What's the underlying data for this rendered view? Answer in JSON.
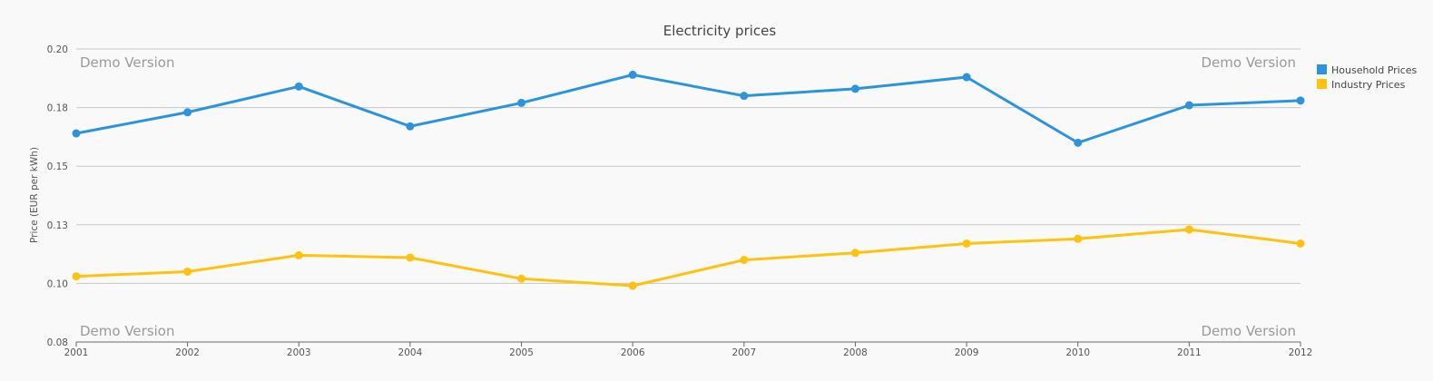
{
  "chart_data": {
    "type": "line",
    "title": "Electricity prices",
    "ylabel": "Price (EUR per kWh)",
    "xlabel": "",
    "x": [
      "2001",
      "2002",
      "2003",
      "2004",
      "2005",
      "2006",
      "2007",
      "2008",
      "2009",
      "2010",
      "2011",
      "2012"
    ],
    "ylim": [
      0.075,
      0.2
    ],
    "yticks": [
      0.2,
      0.175,
      0.15,
      0.125,
      0.1,
      0.075
    ],
    "ytick_labels": [
      "0.20",
      "0.18",
      "0.15",
      "0.13",
      "0.10",
      "0.08"
    ],
    "grid": true,
    "legend": "right-top",
    "series": [
      {
        "name": "Household Prices",
        "color": "#2b94dd",
        "values": [
          0.164,
          0.173,
          0.184,
          0.167,
          0.177,
          0.189,
          0.18,
          0.183,
          0.188,
          0.16,
          0.176,
          0.178
        ]
      },
      {
        "name": "Industry Prices",
        "color": "#ffc20e",
        "values": [
          0.103,
          0.105,
          0.112,
          0.111,
          0.102,
          0.099,
          0.11,
          0.113,
          0.117,
          0.119,
          0.123,
          0.117
        ]
      }
    ],
    "watermark": "Demo Version"
  }
}
